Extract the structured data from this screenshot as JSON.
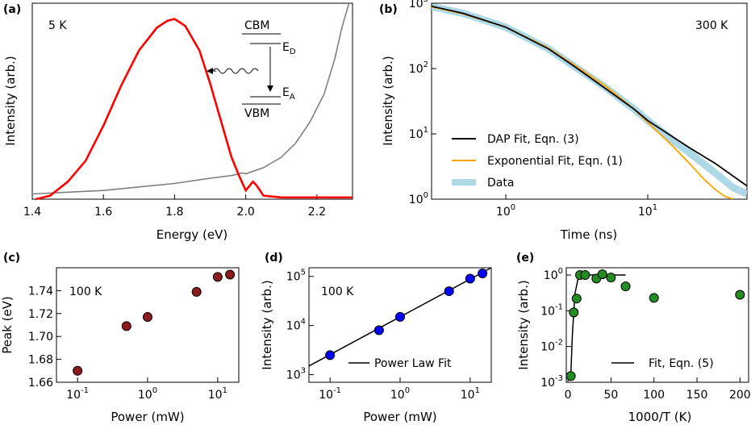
{
  "chart_data": [
    {
      "panel_label": "(a)",
      "type": "line",
      "xlabel": "Energy (eV)",
      "ylabel": "Intensity (arb.)",
      "annotation": "5 K",
      "xlim": [
        1.4,
        2.3
      ],
      "ylim": [
        0,
        1.12
      ],
      "x_ticks": [
        "1.4",
        "1.6",
        "1.8",
        "2.0",
        "2.2"
      ],
      "x_tick_values": [
        1.4,
        1.6,
        1.8,
        2.0,
        2.2
      ],
      "band_labels": {
        "cbm": "CBM",
        "ed": "E",
        "ed_sub": "D",
        "ea": "E",
        "ea_sub": "A",
        "vbm": "VBM"
      },
      "colors": {
        "emission": "#ff0000",
        "absorption": "#808080",
        "diagram": "#000000"
      },
      "series": [
        {
          "values_x": [
            1.41,
            1.45,
            1.5,
            1.55,
            1.6,
            1.65,
            1.7,
            1.75,
            1.78,
            1.8,
            1.83,
            1.87,
            1.9,
            1.93,
            1.96,
            1.98,
            2.0,
            2.02,
            2.03,
            2.05,
            2.1,
            2.2,
            2.3
          ],
          "values_y": [
            0.0,
            0.02,
            0.1,
            0.22,
            0.42,
            0.65,
            0.85,
            0.98,
            1.02,
            1.03,
            0.99,
            0.85,
            0.66,
            0.45,
            0.24,
            0.14,
            0.05,
            0.1,
            0.08,
            0.02,
            0.01,
            0.01,
            0.01
          ]
        },
        {
          "values_x": [
            1.4,
            1.5,
            1.6,
            1.7,
            1.8,
            1.9,
            1.96,
            1.99,
            2.0,
            2.05,
            2.1,
            2.14,
            2.18,
            2.22,
            2.25,
            2.27,
            2.29
          ],
          "values_y": [
            0.03,
            0.04,
            0.05,
            0.07,
            0.09,
            0.12,
            0.135,
            0.15,
            0.145,
            0.18,
            0.24,
            0.32,
            0.44,
            0.6,
            0.8,
            0.98,
            1.12
          ]
        }
      ]
    },
    {
      "panel_label": "(b)",
      "type": "line",
      "xlabel": "Time (ns)",
      "ylabel": "Intensity (arb.)",
      "annotation": "300 K",
      "x_scale": "log",
      "y_scale": "log",
      "xlim": [
        0.3,
        50
      ],
      "ylim": [
        1,
        1000
      ],
      "x_ticks": [
        {
          "base": "10",
          "exp": "0"
        },
        {
          "base": "10",
          "exp": "1"
        }
      ],
      "x_tick_values": [
        1,
        10
      ],
      "y_ticks": [
        {
          "base": "10",
          "exp": "0"
        },
        {
          "base": "10",
          "exp": "1"
        },
        {
          "base": "10",
          "exp": "2"
        },
        {
          "base": "10",
          "exp": "3"
        }
      ],
      "y_tick_values": [
        1,
        10,
        100,
        1000
      ],
      "legend_position": "bottom-left",
      "series": [
        {
          "name": "DAP Fit, Eqn. (3)",
          "color": "#000000",
          "values_x": [
            0.3,
            0.5,
            1,
            2,
            3,
            5,
            8,
            10,
            15,
            20,
            30,
            50
          ],
          "values_y": [
            900,
            700,
            430,
            200,
            110,
            50,
            24,
            16,
            9,
            6,
            3.5,
            1.6
          ]
        },
        {
          "name": "Exponential Fit, Eqn. (1)",
          "color": "#ffa500",
          "values_x": [
            0.3,
            0.5,
            1,
            2,
            3,
            5,
            8,
            10,
            15,
            20,
            25,
            30,
            35,
            40
          ],
          "values_y": [
            880,
            690,
            430,
            205,
            115,
            55,
            24,
            15,
            6.5,
            3.4,
            2.0,
            1.4,
            1.1,
            1.0
          ]
        },
        {
          "name": "Data",
          "color": "#add8e6",
          "values_x": [
            0.3,
            0.5,
            1,
            2,
            3,
            5,
            8,
            10,
            15,
            20,
            30,
            40,
            50
          ],
          "values_y": [
            890,
            700,
            430,
            200,
            110,
            52,
            24,
            16,
            8,
            5,
            2.5,
            1.5,
            1.2
          ]
        }
      ]
    },
    {
      "panel_label": "(c)",
      "type": "scatter",
      "xlabel": "Power (mW)",
      "ylabel": "Peak (eV)",
      "annotation": "100 K",
      "x_scale": "log",
      "xlim": [
        0.05,
        20
      ],
      "ylim": [
        1.66,
        1.76
      ],
      "x_ticks": [
        {
          "base": "10",
          "exp": "-1"
        },
        {
          "base": "10",
          "exp": "0"
        },
        {
          "base": "10",
          "exp": "1"
        }
      ],
      "x_tick_values": [
        0.1,
        1,
        10
      ],
      "y_ticks": [
        "1.66",
        "1.68",
        "1.70",
        "1.72",
        "1.74"
      ],
      "y_tick_values": [
        1.66,
        1.68,
        1.7,
        1.72,
        1.74
      ],
      "color": "#8b1a1a",
      "x": [
        0.1,
        0.5,
        1,
        5,
        10,
        15
      ],
      "y": [
        1.67,
        1.709,
        1.717,
        1.739,
        1.752,
        1.754
      ]
    },
    {
      "panel_label": "(d)",
      "type": "scatter",
      "xlabel": "Power (mW)",
      "ylabel": "Intensity (arb.)",
      "annotation": "100 K",
      "x_scale": "log",
      "y_scale": "log",
      "xlim": [
        0.05,
        20
      ],
      "ylim": [
        700,
        150000
      ],
      "x_ticks": [
        {
          "base": "10",
          "exp": "-1"
        },
        {
          "base": "10",
          "exp": "0"
        },
        {
          "base": "10",
          "exp": "1"
        }
      ],
      "x_tick_values": [
        0.1,
        1,
        10
      ],
      "y_ticks": [
        {
          "base": "10",
          "exp": "3"
        },
        {
          "base": "10",
          "exp": "4"
        },
        {
          "base": "10",
          "exp": "5"
        }
      ],
      "y_tick_values": [
        1000,
        10000,
        100000
      ],
      "point_color": "#0000ff",
      "x": [
        0.1,
        0.5,
        1,
        5,
        10,
        15
      ],
      "y": [
        2500,
        8000,
        15000,
        50000,
        90000,
        115000
      ],
      "fit": {
        "name": "Power Law Fit",
        "color": "#000000",
        "x": [
          0.05,
          20
        ],
        "y": [
          1500,
          150000
        ]
      }
    },
    {
      "panel_label": "(e)",
      "type": "scatter",
      "xlabel": "1000/T (K)",
      "ylabel": "Intensity (arb.)",
      "y_scale": "log",
      "xlim": [
        -2,
        210
      ],
      "ylim": [
        0.001,
        1.6
      ],
      "x_ticks": [
        "0",
        "50",
        "100",
        "150",
        "200"
      ],
      "x_tick_values": [
        0,
        50,
        100,
        150,
        200
      ],
      "y_ticks": [
        {
          "base": "10",
          "exp": "-3"
        },
        {
          "base": "10",
          "exp": "-2"
        },
        {
          "base": "10",
          "exp": "-1"
        },
        {
          "base": "10",
          "exp": "0"
        }
      ],
      "y_tick_values": [
        0.001,
        0.01,
        0.1,
        1
      ],
      "point_color": "#228b22",
      "x": [
        3.3,
        6.7,
        10,
        14,
        20,
        33,
        40,
        50,
        67,
        100,
        200
      ],
      "y": [
        0.0015,
        0.09,
        0.22,
        1.0,
        1.0,
        0.8,
        1.05,
        0.85,
        0.48,
        0.23,
        0.28
      ],
      "fit": {
        "name": "Fit, Eqn. (5)",
        "color": "#000000",
        "x": [
          3.3,
          5,
          8,
          12,
          16,
          20,
          30,
          45,
          60,
          67
        ],
        "y": [
          0.0015,
          0.02,
          0.3,
          0.85,
          0.97,
          1.0,
          1.0,
          1.0,
          1.0,
          1.0
        ]
      }
    }
  ]
}
